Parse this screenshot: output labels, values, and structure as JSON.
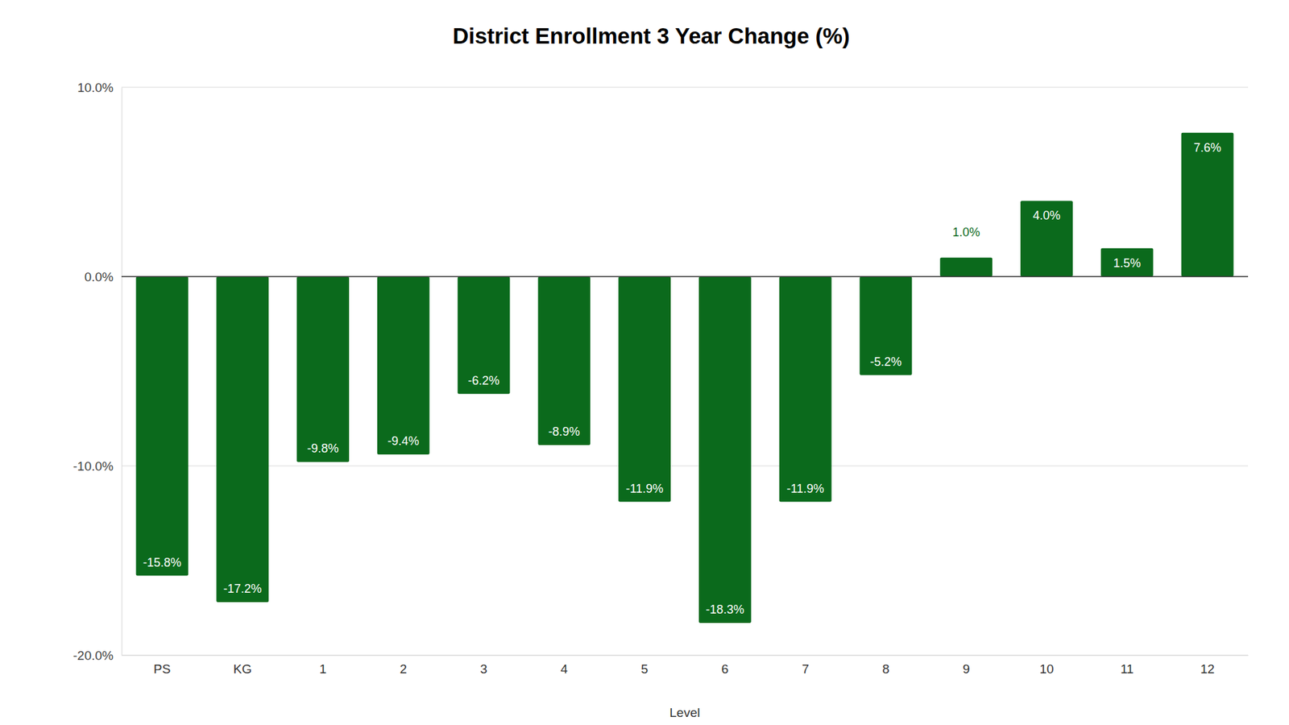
{
  "chart_data": {
    "type": "bar",
    "title": "District Enrollment 3 Year Change (%)",
    "x_label": "Level",
    "categories": [
      "PS",
      "KG",
      "1",
      "2",
      "3",
      "4",
      "5",
      "6",
      "7",
      "8",
      "9",
      "10",
      "11",
      "12"
    ],
    "values": [
      -15.8,
      -17.2,
      -9.8,
      -9.4,
      -6.2,
      -8.9,
      -11.9,
      -18.3,
      -11.9,
      -5.2,
      1.0,
      4.0,
      1.5,
      7.6
    ],
    "value_labels": [
      "-15.8%",
      "-17.2%",
      "-9.8%",
      "-9.4%",
      "-6.2%",
      "-8.9%",
      "-11.9%",
      "-18.3%",
      "-11.9%",
      "-5.2%",
      "1.0%",
      "4.0%",
      "1.5%",
      "7.6%"
    ],
    "color": "#0b6a1c",
    "ylim": [
      -20,
      10
    ],
    "yticks": [
      {
        "value": -20,
        "label": "-20.0%"
      },
      {
        "value": -10,
        "label": "-10.0%"
      },
      {
        "value": 0,
        "label": "0.0%"
      },
      {
        "value": 10,
        "label": "10.0%"
      }
    ],
    "grid": true,
    "data_labels": true
  }
}
